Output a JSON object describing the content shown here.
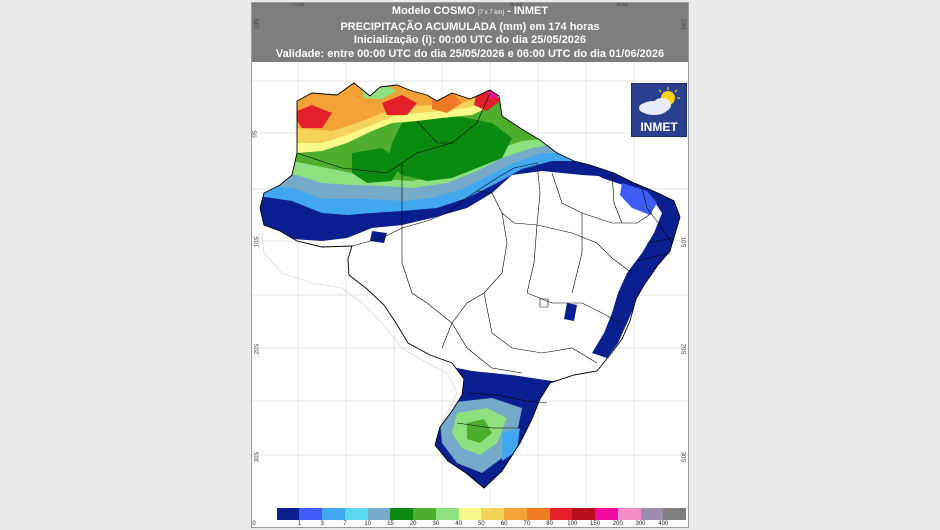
{
  "header": {
    "line1_a": "Modelo COSMO ",
    "line1_small": "[7 x 7 km]",
    "line1_b": " - INMET",
    "line2": "PRECIPITAÇÃO ACUMULADA (mm) em 174 horas",
    "line3": "Inicialização (i): 00:00 UTC do dia 25/05/2026",
    "line4": "Validade: entre 00:00 UTC do dia 25/05/2026 e 06:00 UTC do dia 01/06/2026"
  },
  "axis": {
    "top_lon": [
      "70W",
      "50W",
      "40W"
    ],
    "left_lat": [
      "10N",
      "0S",
      "10S",
      "20S",
      "30S"
    ],
    "right_lat": [
      "10N",
      "0S",
      "10S",
      "20S",
      "30S"
    ]
  },
  "logo": {
    "text": "INMET",
    "icon": "cloud-sun-icon"
  },
  "legend": {
    "colors": [
      "#ffffff",
      "#0a1f8f",
      "#3d5bf5",
      "#41a7f0",
      "#5bd8f0",
      "#75aac8",
      "#0b8a10",
      "#4fae2e",
      "#8fe07f",
      "#fafa88",
      "#f5d35a",
      "#f3a236",
      "#f07a26",
      "#e3202a",
      "#b8101a",
      "#f00aa0",
      "#f58cc8",
      "#9b8cb0",
      "#7f7f7f"
    ],
    "labels": [
      "0",
      "1",
      "3",
      "7",
      "10",
      "15",
      "20",
      "30",
      "40",
      "50",
      "60",
      "70",
      "80",
      "100",
      "150",
      "200",
      "300",
      "400"
    ]
  }
}
